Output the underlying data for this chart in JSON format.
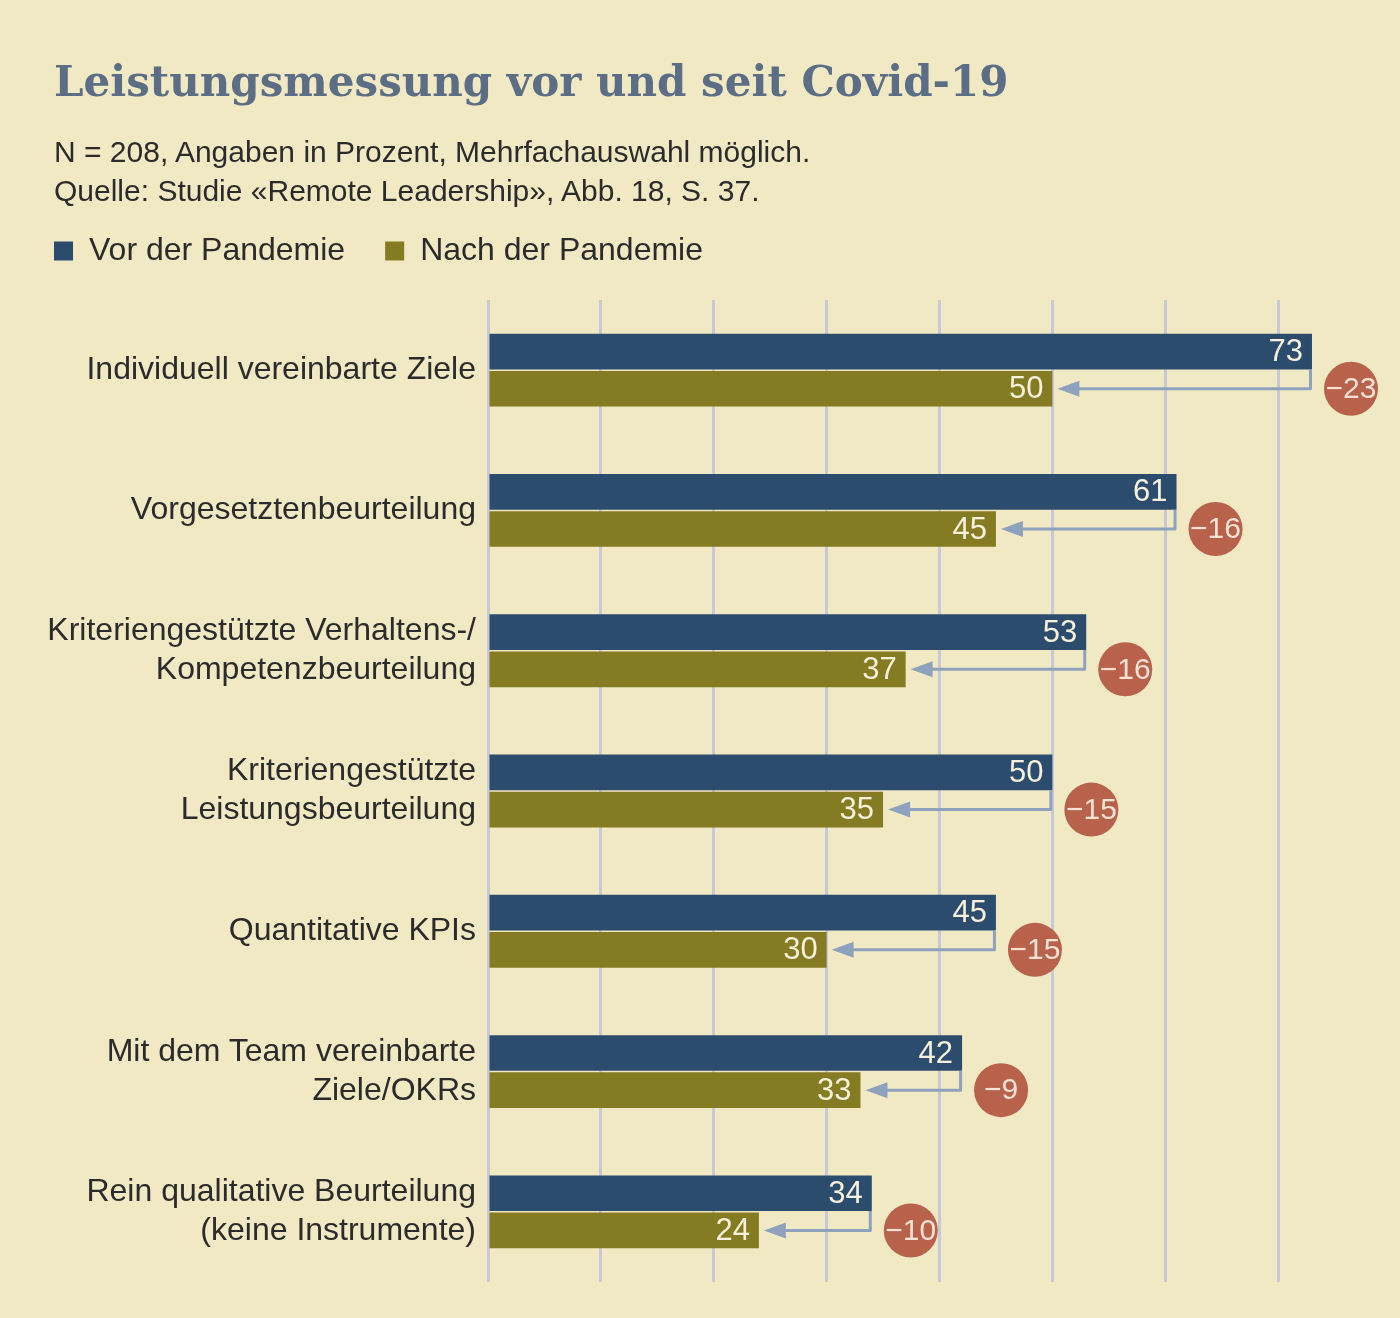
{
  "chart_data": {
    "type": "bar",
    "orientation": "horizontal",
    "title": "Leistungsmessung vor und seit Covid-19",
    "subtitle": "N = 208, Angaben in Prozent, Mehrfachauswahl möglich.",
    "categories": [
      "Individuell vereinbarte Ziele",
      "Vorgesetztenbeurteilung",
      "Kriteriengestützte Verhaltens-/\nKompetenzbeurteilung",
      "Kriteriengestützte\nLeistungsbeurteilung",
      "Quantitative KPIs",
      "Mit dem Team vereinbarte\nZiele/OKRs",
      "Rein qualitative Beurteilung\n(keine Instrumente)"
    ],
    "series": [
      {
        "name": "Vor der Pandemie",
        "color": "#2c4c6e",
        "values": [
          73,
          61,
          53,
          50,
          45,
          42,
          34
        ]
      },
      {
        "name": "Nach der Pandemie",
        "color": "#857b22",
        "values": [
          50,
          45,
          37,
          35,
          30,
          33,
          24
        ]
      }
    ],
    "xticks": [
      {
        "value": 0,
        "label": null
      },
      {
        "value": 10,
        "label": null
      },
      {
        "value": 20,
        "label": null
      },
      {
        "value": 30,
        "label": null
      },
      {
        "value": 40,
        "label": null
      },
      {
        "value": 50,
        "label": null
      },
      {
        "value": 60,
        "label": null
      },
      {
        "value": 70,
        "label": null
      }
    ],
    "grid": "x",
    "legend": "top left",
    "tick_labels": "y",
    "data_labels": true,
    "annotations": [
      "Quelle: Studie «Remote Leadership», Abb. 18, S. 37.",
      {
        "text": "−23",
        "x": 73,
        "y": "Individuell vereinbarte Ziele"
      },
      {
        "text": "−16",
        "x": 61,
        "y": "Vorgesetztenbeurteilung"
      },
      {
        "text": "−16",
        "x": 53,
        "y": "Kriteriengestützte Verhaltens-/\nKompetenzbeurteilung"
      },
      {
        "text": "−15",
        "x": 50,
        "y": "Kriteriengestützte\nLeistungsbeurteilung"
      },
      {
        "text": "−15",
        "x": 45,
        "y": "Quantitative KPIs"
      },
      {
        "text": "−9",
        "x": 42,
        "y": "Mit dem Team vereinbarte\nZiele/OKRs"
      },
      {
        "text": "−10",
        "x": 34,
        "y": "Rein qualitative Beurteilung\n(keine Instrumente)"
      }
    ]
  }
}
